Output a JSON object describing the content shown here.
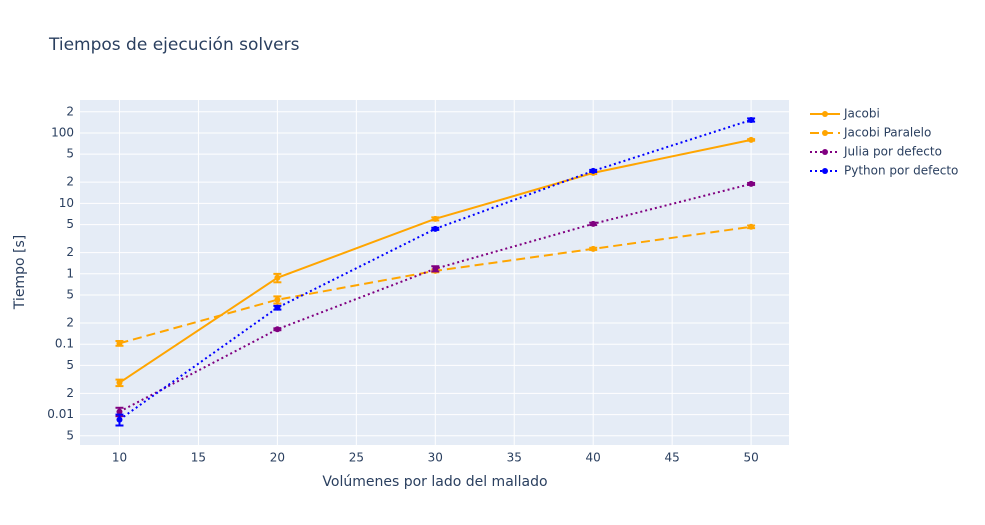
{
  "chart_data": {
    "type": "line",
    "title": "Tiempos de ejecución solvers",
    "x_label": "Volúmenes por lado del mallado",
    "y_label": "Tiempo [s]",
    "x": [
      10,
      20,
      30,
      40,
      50
    ],
    "xlim": [
      7.5,
      52.4
    ],
    "xticks": [
      10,
      15,
      20,
      25,
      30,
      35,
      40,
      45,
      50
    ],
    "ylim": [
      0.0037,
      294
    ],
    "y_scale": "log",
    "yticks": [
      {
        "value": 0.005,
        "label": "5"
      },
      0.01,
      {
        "value": 0.02,
        "label": "2"
      },
      {
        "value": 0.05,
        "label": "5"
      },
      0.1,
      {
        "value": 0.2,
        "label": "2"
      },
      {
        "value": 0.5,
        "label": "5"
      },
      1,
      {
        "value": 2,
        "label": "2"
      },
      {
        "value": 5,
        "label": "5"
      },
      10,
      {
        "value": 20,
        "label": "2"
      },
      {
        "value": 50,
        "label": "5"
      },
      100,
      {
        "value": 200,
        "label": "2"
      }
    ],
    "grid": true,
    "legend": "right",
    "series": [
      {
        "name": "Jacobi",
        "color": "#ffa500",
        "dash": "solid",
        "values": [
          0.0284,
          0.877,
          6.03,
          27.1,
          79.7
        ],
        "errors": [
          0.003,
          0.12,
          0.3,
          1,
          2
        ]
      },
      {
        "name": "Jacobi Paralelo",
        "color": "#ffa500",
        "dash": "dash",
        "values": [
          0.103,
          0.428,
          1.1,
          2.26,
          4.65
        ],
        "errors": [
          0.008,
          0.05,
          0.05,
          0.08,
          0.2
        ]
      },
      {
        "name": "Julia por defecto",
        "color": "#800080",
        "dash": "dot",
        "values": [
          0.011,
          0.163,
          1.18,
          5.12,
          18.9
        ],
        "errors": [
          0.0015,
          0.005,
          0.1,
          0.2,
          0.6
        ]
      },
      {
        "name": "Python por defecto",
        "color": "#0000ff",
        "dash": "dot",
        "values": [
          0.0085,
          0.33,
          4.35,
          28.9,
          153
        ],
        "errors": [
          0.0015,
          0.02,
          0.15,
          1,
          8
        ]
      }
    ]
  }
}
